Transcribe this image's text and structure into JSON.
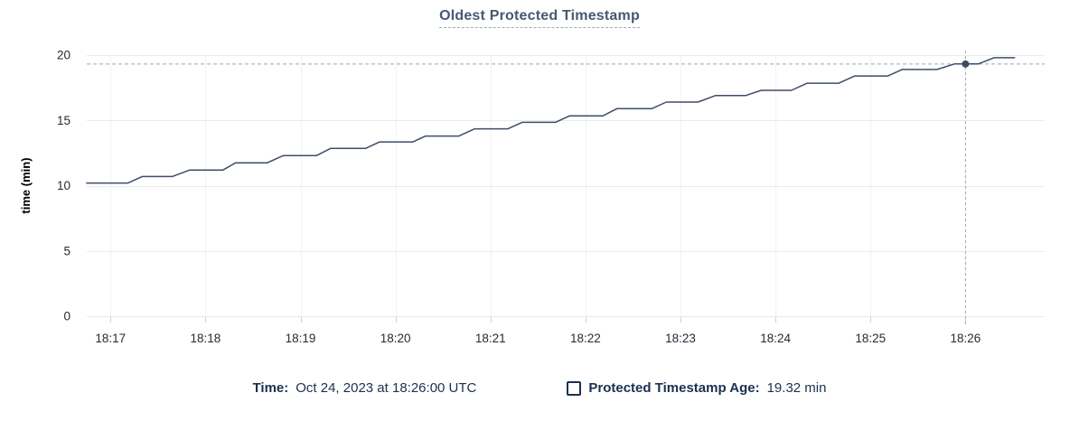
{
  "title": "Oldest Protected Timestamp",
  "legend": {
    "time_label": "Time:",
    "time_value": "Oct 24, 2023 at 18:26:00 UTC",
    "series_label": "Protected Timestamp Age:",
    "series_value": "19.32 min"
  },
  "colors": {
    "line": "#3f4c67",
    "title": "#475872",
    "legend_text": "#1b3050",
    "crosshair": "#94abc0",
    "grid_horizontal": "#e9eaec",
    "grid_vertical": "#f1f2f3",
    "tick_mark": "#ccd2d8",
    "axis_text": "#242a35"
  },
  "chart_data": {
    "type": "line",
    "title": "Oldest Protected Timestamp",
    "xlabel": "",
    "ylabel": "time (min)",
    "ylim": [
      0,
      20
    ],
    "yticks": [
      0,
      5,
      10,
      15,
      20
    ],
    "xticks": [
      "18:17",
      "18:18",
      "18:19",
      "18:20",
      "18:21",
      "18:22",
      "18:23",
      "18:24",
      "18:25",
      "18:26"
    ],
    "x_range": [
      "18:16:45",
      "18:26:50"
    ],
    "grid": true,
    "legend_position": "bottom",
    "series": [
      {
        "name": "Protected Timestamp Age",
        "unit": "min",
        "points": [
          [
            "18:16:45",
            10.2
          ],
          [
            "18:17:11",
            10.2
          ],
          [
            "18:17:20",
            10.7
          ],
          [
            "18:17:39",
            10.7
          ],
          [
            "18:17:50",
            11.2
          ],
          [
            "18:18:11",
            11.2
          ],
          [
            "18:18:19",
            11.75
          ],
          [
            "18:18:39",
            11.75
          ],
          [
            "18:18:49",
            12.3
          ],
          [
            "18:19:10",
            12.3
          ],
          [
            "18:19:19",
            12.85
          ],
          [
            "18:19:41",
            12.85
          ],
          [
            "18:19:50",
            13.35
          ],
          [
            "18:20:11",
            13.35
          ],
          [
            "18:20:19",
            13.8
          ],
          [
            "18:20:40",
            13.8
          ],
          [
            "18:20:50",
            14.35
          ],
          [
            "18:21:11",
            14.35
          ],
          [
            "18:21:20",
            14.85
          ],
          [
            "18:21:41",
            14.85
          ],
          [
            "18:21:50",
            15.35
          ],
          [
            "18:22:11",
            15.35
          ],
          [
            "18:22:20",
            15.9
          ],
          [
            "18:22:42",
            15.9
          ],
          [
            "18:22:51",
            16.4
          ],
          [
            "18:23:11",
            16.4
          ],
          [
            "18:23:22",
            16.9
          ],
          [
            "18:23:41",
            16.9
          ],
          [
            "18:23:51",
            17.3
          ],
          [
            "18:24:10",
            17.3
          ],
          [
            "18:24:20",
            17.85
          ],
          [
            "18:24:40",
            17.85
          ],
          [
            "18:24:50",
            18.4
          ],
          [
            "18:25:11",
            18.4
          ],
          [
            "18:25:20",
            18.9
          ],
          [
            "18:25:42",
            18.9
          ],
          [
            "18:25:53",
            19.32
          ],
          [
            "18:26:08",
            19.32
          ],
          [
            "18:26:18",
            19.8
          ],
          [
            "18:26:31",
            19.8
          ]
        ]
      }
    ],
    "highlight": {
      "time": "18:26:00",
      "value": 19.32
    }
  }
}
